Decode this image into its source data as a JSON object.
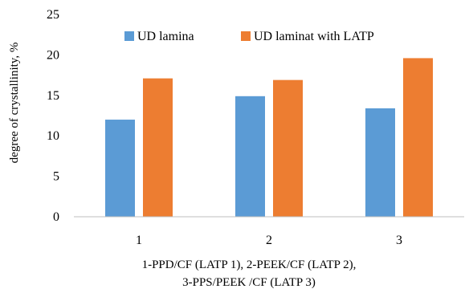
{
  "chart_data": {
    "type": "bar",
    "categories": [
      "1",
      "2",
      "3"
    ],
    "series": [
      {
        "name": "UD lamina",
        "values": [
          12.0,
          14.9,
          13.4
        ],
        "color": "#5b9bd5"
      },
      {
        "name": "UD laminat with LATP",
        "values": [
          17.1,
          16.9,
          19.6
        ],
        "color": "#ed7d31"
      }
    ],
    "ylabel": "degree of crystallinity, %",
    "xlabel_lines": [
      "1-PPD/CF (LATP 1), 2-PEEK/CF (LATP 2),",
      "3-PPS/PEEK /CF (LATP 3)"
    ],
    "ylim": [
      0,
      25
    ],
    "yticks": [
      0,
      5,
      10,
      15,
      20,
      25
    ],
    "grid": false,
    "legend": "top"
  }
}
